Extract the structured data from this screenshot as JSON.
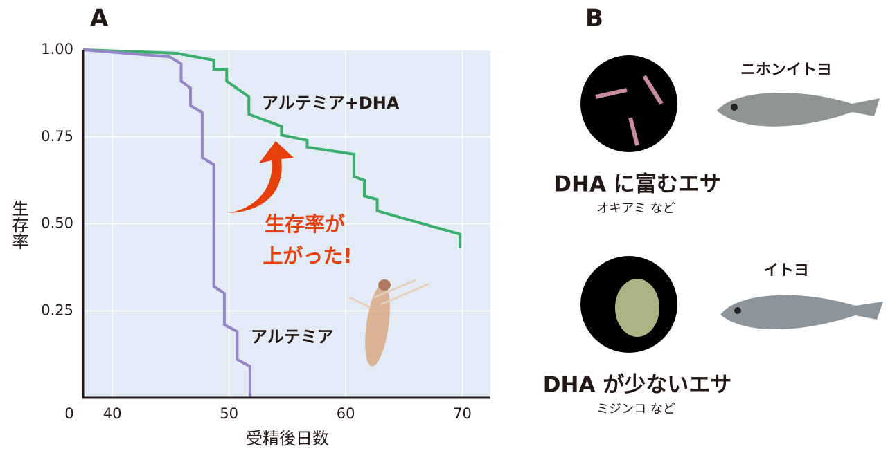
{
  "chart_data": {
    "type": "line",
    "panel_label": "A",
    "x_label": "受精後日数",
    "y_label": "生存率",
    "xlim": [
      37.5,
      72.4
    ],
    "ylim": [
      0,
      1.0
    ],
    "xticks": [
      40,
      50,
      60,
      70
    ],
    "yticks": [
      0,
      0.25,
      {
        "value": 0.5,
        "label": "0.50"
      },
      0.75,
      {
        "value": 1.0,
        "label": "1.00"
      }
    ],
    "grid": true,
    "series": [
      {
        "name": "アルテミア+DHA",
        "color": "#3aae6b",
        "x": [
          37.5,
          45.5,
          48.7,
          48.7,
          49.8,
          49.8,
          51.7,
          51.7,
          54.5,
          54.5,
          56.7,
          56.7,
          60.7,
          60.7,
          61.6,
          61.6,
          62.7,
          62.7,
          69.8,
          69.8
        ],
        "values": [
          1.0,
          0.99,
          0.97,
          0.944,
          0.944,
          0.91,
          0.865,
          0.815,
          0.78,
          0.755,
          0.74,
          0.72,
          0.7,
          0.636,
          0.625,
          0.58,
          0.57,
          0.537,
          0.47,
          0.43
        ]
      },
      {
        "name": "アルテミア",
        "color": "#9486c6",
        "x": [
          37.5,
          44.9,
          45.9,
          45.9,
          46.7,
          46.7,
          47.7,
          47.7,
          48.7,
          48.7,
          49.6,
          49.6,
          50.7,
          50.7,
          51.8,
          51.8
        ],
        "values": [
          1.0,
          0.98,
          0.96,
          0.91,
          0.89,
          0.84,
          0.82,
          0.69,
          0.67,
          0.32,
          0.3,
          0.21,
          0.19,
          0.11,
          0.09,
          0
        ]
      }
    ],
    "annotations": [
      "生存率が",
      "上がった!"
    ]
  },
  "panel_b": {
    "panel_label": "B",
    "items": [
      {
        "food": "DHA に富むエサ",
        "example": "オキアミ など",
        "fish": "ニホンイトヨ"
      },
      {
        "food": "DHA が少ないエサ",
        "example": "ミジンコ など",
        "fish": "イトヨ"
      }
    ]
  }
}
